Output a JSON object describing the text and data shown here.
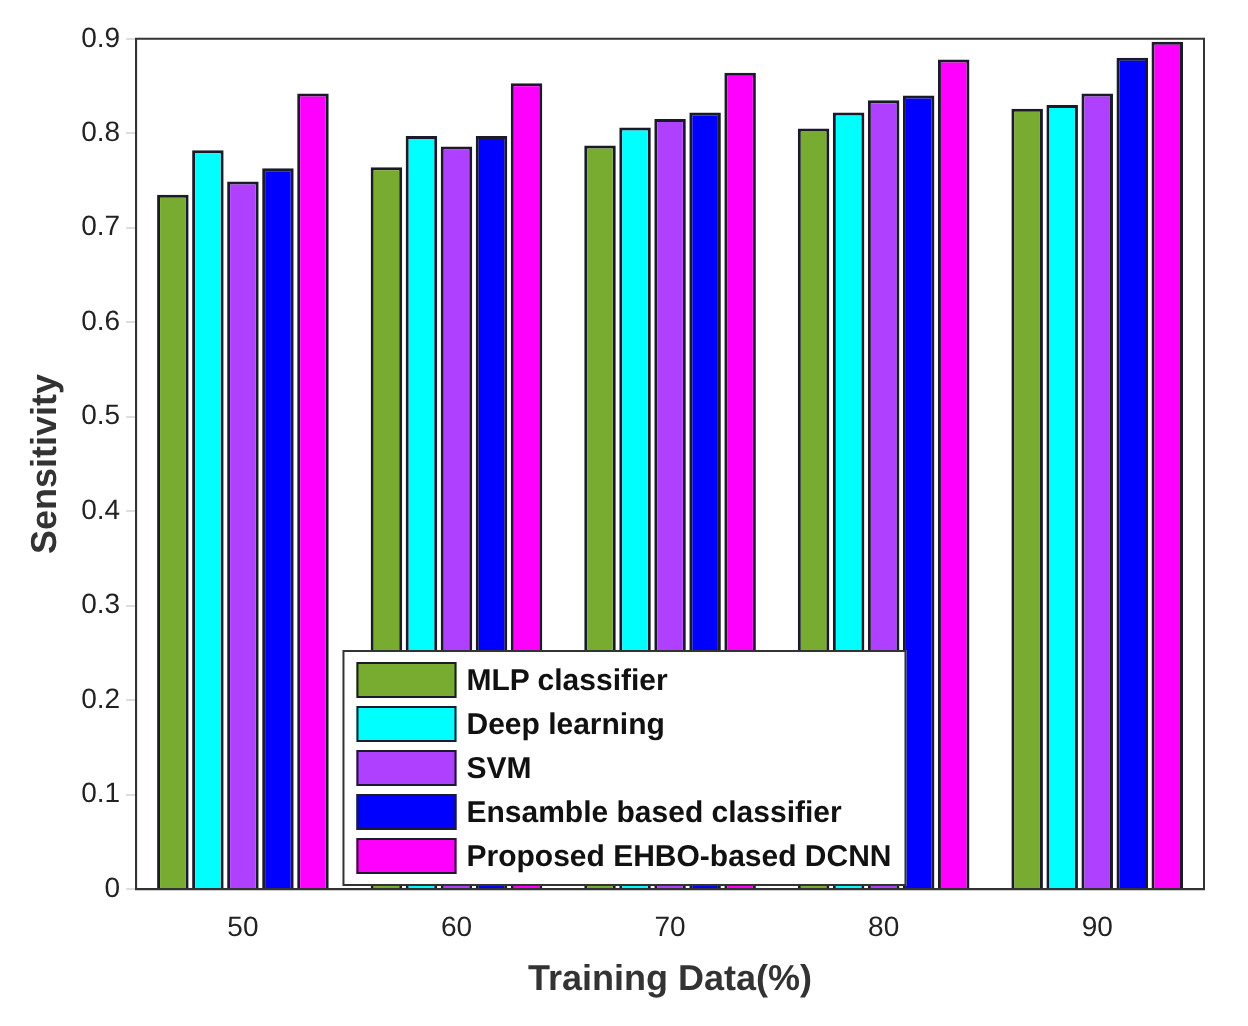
{
  "chart_data": {
    "type": "bar",
    "xlabel": "Training Data(%)",
    "ylabel": "Sensitivity",
    "categories": [
      "50",
      "60",
      "70",
      "80",
      "90"
    ],
    "series": [
      {
        "name": "MLP classifier",
        "color": "#77ac30",
        "values": [
          0.735,
          0.764,
          0.787,
          0.805,
          0.826
        ]
      },
      {
        "name": "Deep learning",
        "color": "#00ffff",
        "values": [
          0.782,
          0.797,
          0.806,
          0.822,
          0.83
        ]
      },
      {
        "name": "SVM",
        "color": "#b040ff",
        "values": [
          0.749,
          0.786,
          0.815,
          0.835,
          0.842
        ]
      },
      {
        "name": "Ensamble based classifier",
        "color": "#0000ff",
        "values": [
          0.763,
          0.797,
          0.822,
          0.84,
          0.88
        ]
      },
      {
        "name": "Proposed EHBO-based DCNN",
        "color": "#ff00ff",
        "values": [
          0.842,
          0.853,
          0.864,
          0.878,
          0.897
        ]
      }
    ],
    "ylim": [
      0,
      0.9
    ],
    "yticks": [
      0,
      0.1,
      0.2,
      0.3,
      0.4,
      0.5,
      0.6,
      0.7,
      0.8,
      0.9
    ],
    "grid": false,
    "legend": "bottom"
  }
}
